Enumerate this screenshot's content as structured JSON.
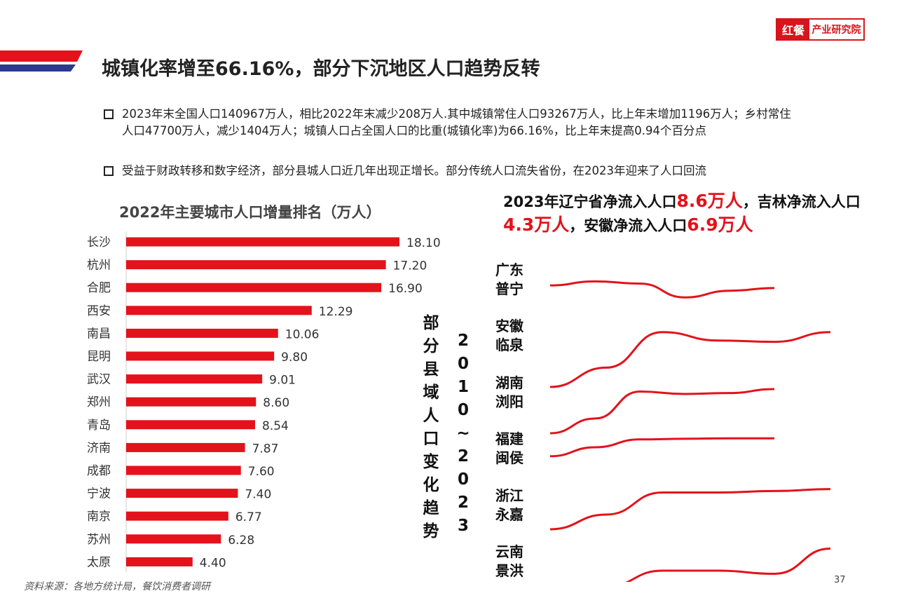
{
  "brand": {
    "logo_mark": "红餐",
    "logo_text": "产业研究院"
  },
  "header": {
    "title": "城镇化率增至66.16%，部分下沉地区人口趋势反转"
  },
  "bullets": [
    "2023年末全国人口140967万人，相比2022年末减少208万人.其中城镇常住人口93267万人，比上年末增加1196万人；乡村常住人口47700万人，减少1404万人；城镇人口占全国人口的比重(城镇化率)为66.16%，比上年末提高0.94个百分点",
    "受益于财政转移和数字经济，部分县城人口近几年出现正增长。部分传统人口流失省份，在2023年迎来了人口回流"
  ],
  "note": {
    "p1": "2023年辽宁省净流入人口",
    "v1": "8.6万人",
    "p2": "，吉林净流入人口",
    "v2": "4.3万人",
    "p3": "，安徽净流入人口",
    "v3": "6.9万人"
  },
  "chart_data": [
    {
      "type": "bar",
      "orientation": "horizontal",
      "title": "2022年主要城市人口增量排名（万人）",
      "categories": [
        "长沙",
        "杭州",
        "合肥",
        "西安",
        "南昌",
        "昆明",
        "武汉",
        "郑州",
        "青岛",
        "济南",
        "成都",
        "宁波",
        "南京",
        "苏州",
        "太原"
      ],
      "values": [
        18.1,
        17.2,
        16.9,
        12.29,
        10.06,
        9.8,
        9.01,
        8.6,
        8.54,
        7.87,
        7.6,
        7.4,
        6.77,
        6.28,
        4.4
      ],
      "value_labels": [
        "18.10",
        "17.20",
        "16.90",
        "12.29",
        "10.06",
        "9.80",
        "9.01",
        "8.60",
        "8.54",
        "7.87",
        "7.60",
        "7.40",
        "6.77",
        "6.28",
        "4.40"
      ],
      "bar_color": "#e3121b",
      "grid": false,
      "legend": "none"
    },
    {
      "type": "line",
      "title_vertical": "部分县域人口变化趋势",
      "period_vertical": "2010~2023",
      "axes": "hidden",
      "line_color": "#e3121b",
      "series": [
        {
          "name": "广东普宁",
          "trend": [
            0.55,
            0.7,
            0.62,
            0.1,
            0.35,
            0.45
          ]
        },
        {
          "name": "安徽临泉",
          "trend": [
            0.0,
            0.3,
            0.85,
            0.72,
            0.7,
            0.85
          ]
        },
        {
          "name": "湖南浏阳",
          "trend": [
            0.0,
            0.3,
            0.85,
            0.8,
            0.82,
            0.9
          ]
        },
        {
          "name": "福建闽侯",
          "trend": [
            0.1,
            0.5,
            0.85,
            0.88,
            0.9,
            0.9
          ]
        },
        {
          "name": "浙江永嘉",
          "trend": [
            0.1,
            0.4,
            0.85,
            0.85,
            0.88,
            0.92
          ]
        },
        {
          "name": "云南景洪",
          "trend": [
            0.0,
            0.35,
            0.6,
            0.6,
            0.55,
            0.95
          ]
        }
      ]
    }
  ],
  "footer": {
    "source": "资料来源：各地方统计局，餐饮消费者调研",
    "page": "37"
  },
  "colors": {
    "accent": "#e3121b",
    "navy": "#1f2d6b"
  }
}
